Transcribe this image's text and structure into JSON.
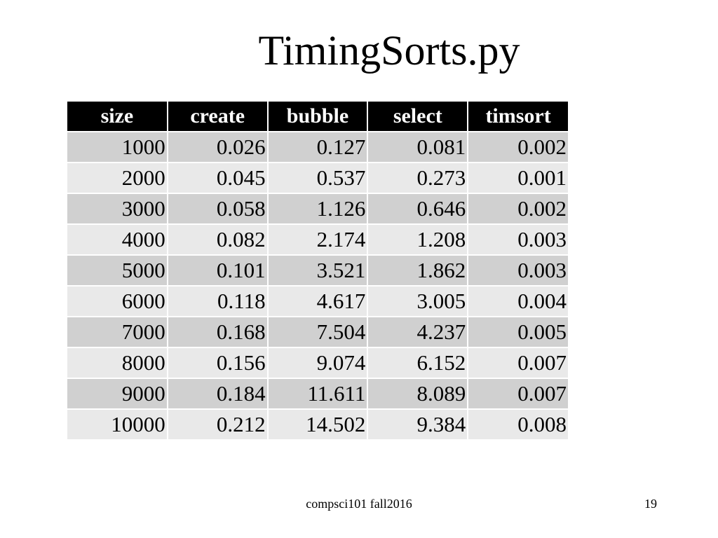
{
  "slide": {
    "title": "TimingSorts.py",
    "footer": "compsci101 fall2016",
    "page_number": "19"
  },
  "table": {
    "headers": [
      "size",
      "create",
      "bubble",
      "select",
      "timsort"
    ],
    "rows": [
      [
        "1000",
        "0.026",
        "0.127",
        "0.081",
        "0.002"
      ],
      [
        "2000",
        "0.045",
        "0.537",
        "0.273",
        "0.001"
      ],
      [
        "3000",
        "0.058",
        "1.126",
        "0.646",
        "0.002"
      ],
      [
        "4000",
        "0.082",
        "2.174",
        "1.208",
        "0.003"
      ],
      [
        "5000",
        "0.101",
        "3.521",
        "1.862",
        "0.003"
      ],
      [
        "6000",
        "0.118",
        "4.617",
        "3.005",
        "0.004"
      ],
      [
        "7000",
        "0.168",
        "7.504",
        "4.237",
        "0.005"
      ],
      [
        "8000",
        "0.156",
        "9.074",
        "6.152",
        "0.007"
      ],
      [
        "9000",
        "0.184",
        "11.611",
        "8.089",
        "0.007"
      ],
      [
        "10000",
        "0.212",
        "14.502",
        "9.384",
        "0.008"
      ]
    ]
  },
  "colors": {
    "header_bg": "#000000",
    "header_text": "#ffffff",
    "row_odd_bg": "#d0d0d0",
    "row_even_bg": "#e9e9e9"
  }
}
